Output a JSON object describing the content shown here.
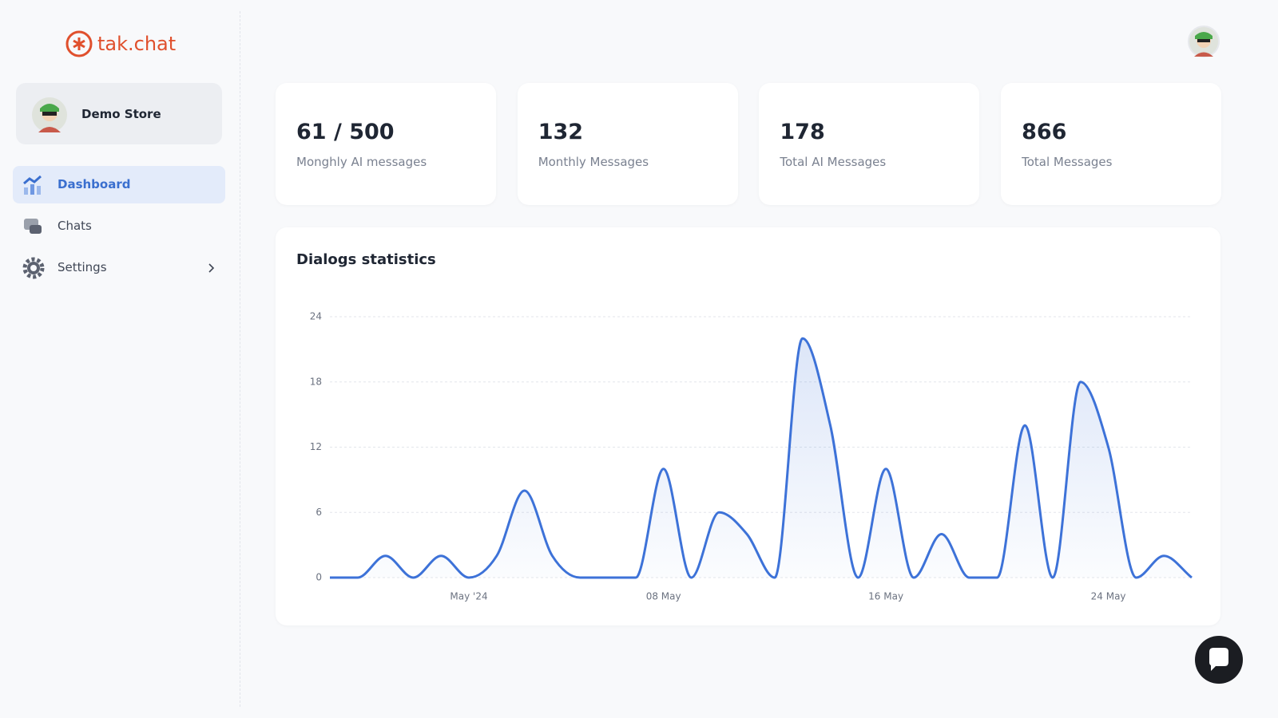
{
  "logo": "tak.chat",
  "sidebar": {
    "store": "Demo Store",
    "nav": [
      "Dashboard",
      "Chats",
      "Settings"
    ]
  },
  "stats": [
    {
      "value": "61 / 500",
      "label": "Monghly AI messages"
    },
    {
      "value": 132,
      "label": "Monthly Messages"
    },
    {
      "value": 178,
      "label": "Total AI Messages"
    },
    {
      "value": 866,
      "label": "Total Messages"
    }
  ],
  "chart_data": {
    "type": "line",
    "title": "Dialogs statistics",
    "categories": [
      null,
      null,
      null,
      null,
      null,
      "May '24",
      null,
      null,
      null,
      null,
      null,
      null,
      "08 May",
      null,
      null,
      null,
      null,
      null,
      null,
      null,
      "16 May",
      null,
      null,
      null,
      null,
      null,
      null,
      null,
      "24 May",
      null,
      null,
      null
    ],
    "series": [
      {
        "name": "Dialogs",
        "color": "#3d72d8",
        "values": [
          0,
          0,
          2,
          0,
          2,
          0,
          2,
          8,
          2,
          0,
          0,
          0,
          10,
          0,
          6,
          4,
          0,
          22,
          14,
          0,
          10,
          0,
          4,
          0,
          0,
          14,
          0,
          18,
          12,
          0,
          2,
          0
        ]
      }
    ],
    "ylim": [
      0,
      24
    ],
    "yticks": [
      0,
      6,
      12,
      18,
      24
    ],
    "grid": true
  }
}
